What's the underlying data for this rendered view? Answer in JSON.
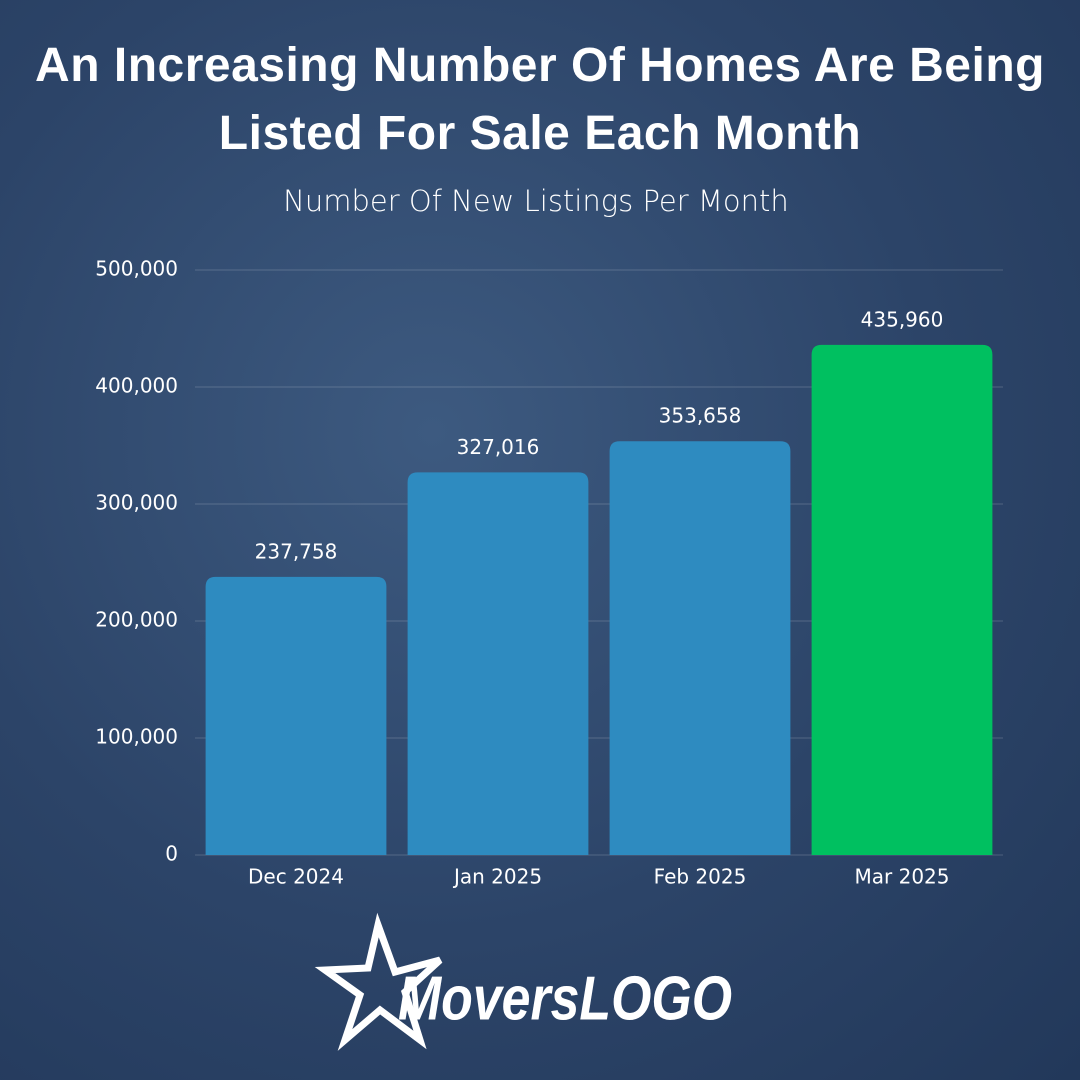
{
  "chart_data": {
    "type": "bar",
    "title": "An Increasing Number Of Homes Are Being Listed For Sale Each Month",
    "subtitle": "Number Of New Listings Per Month",
    "categories": [
      "Dec 2024",
      "Jan 2025",
      "Feb 2025",
      "Mar 2025"
    ],
    "values": [
      237758,
      327016,
      353658,
      435960
    ],
    "value_labels": [
      "237,758",
      "327,016",
      "353,658",
      "435,960"
    ],
    "colors": [
      "#2e8bc0",
      "#2e8bc0",
      "#2e8bc0",
      "#00c060"
    ],
    "ylim": [
      0,
      500000
    ],
    "yticks": [
      0,
      {
        "value": 100000,
        "label": "100,000"
      },
      {
        "value": 200000,
        "label": "200,000"
      },
      {
        "value": 300000,
        "label": "300,000"
      },
      {
        "value": 400000,
        "label": "400,000"
      },
      {
        "value": 500000,
        "label": "500,000"
      }
    ],
    "grid": true
  },
  "logo": "MoversLOGO"
}
